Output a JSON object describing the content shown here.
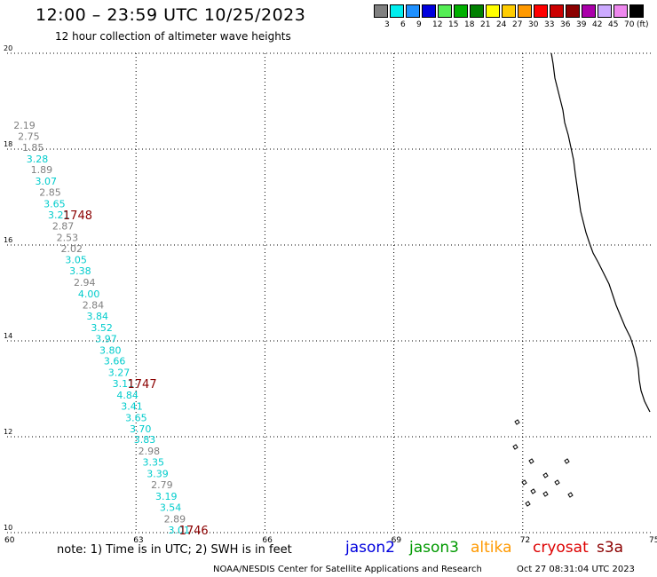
{
  "header": {
    "title": "12:00 – 23:59 UTC 10/25/2023",
    "subtitle": "12 hour collection of altimeter wave heights"
  },
  "colorbar": {
    "swatches": [
      "#808080",
      "#00eeee",
      "#1e90ff",
      "#0000dd",
      "#55ee55",
      "#00b000",
      "#008000",
      "#ffff00",
      "#ffcc00",
      "#ff9900",
      "#ff0000",
      "#cc0000",
      "#8b0000",
      "#aa00aa",
      "#ccaaff",
      "#ee88ee",
      "#000000"
    ],
    "labels": [
      "3",
      "6",
      "9",
      "12",
      "15",
      "18",
      "21",
      "24",
      "27",
      "30",
      "33",
      "36",
      "39",
      "42",
      "45",
      "70"
    ],
    "unit": "(ft)"
  },
  "map": {
    "x_ticks": [
      "60",
      "63",
      "66",
      "69",
      "72",
      "75"
    ],
    "y_ticks": [
      "10",
      "12",
      "14",
      "16",
      "18",
      "20"
    ],
    "x_range": [
      60,
      75
    ],
    "y_range": [
      10,
      20
    ],
    "grid": "dotted"
  },
  "swh_observations": [
    {
      "value": "2.19",
      "color": "#808080",
      "lon": 60.15,
      "lat": 18.5
    },
    {
      "value": "2.75",
      "color": "#808080",
      "lon": 60.25,
      "lat": 18.27
    },
    {
      "value": "1.85",
      "color": "#808080",
      "lon": 60.35,
      "lat": 18.04
    },
    {
      "value": "3.28",
      "color": "#00cccc",
      "lon": 60.45,
      "lat": 17.8
    },
    {
      "value": "1.89",
      "color": "#808080",
      "lon": 60.55,
      "lat": 17.57
    },
    {
      "value": "3.07",
      "color": "#00cccc",
      "lon": 60.65,
      "lat": 17.33
    },
    {
      "value": "2.85",
      "color": "#808080",
      "lon": 60.75,
      "lat": 17.1
    },
    {
      "value": "3.65",
      "color": "#00cccc",
      "lon": 60.85,
      "lat": 16.86
    },
    {
      "value": "3.21",
      "color": "#00cccc",
      "lon": 60.95,
      "lat": 16.63
    },
    {
      "value": "2.87",
      "color": "#808080",
      "lon": 61.05,
      "lat": 16.4
    },
    {
      "value": "2.53",
      "color": "#808080",
      "lon": 61.15,
      "lat": 16.16
    },
    {
      "value": "2.02",
      "color": "#808080",
      "lon": 61.25,
      "lat": 15.93
    },
    {
      "value": "3.05",
      "color": "#00cccc",
      "lon": 61.35,
      "lat": 15.69
    },
    {
      "value": "3.38",
      "color": "#00cccc",
      "lon": 61.45,
      "lat": 15.46
    },
    {
      "value": "2.94",
      "color": "#808080",
      "lon": 61.55,
      "lat": 15.22
    },
    {
      "value": "4.00",
      "color": "#00cccc",
      "lon": 61.65,
      "lat": 14.98
    },
    {
      "value": "2.84",
      "color": "#808080",
      "lon": 61.75,
      "lat": 14.75
    },
    {
      "value": "3.84",
      "color": "#00cccc",
      "lon": 61.85,
      "lat": 14.52
    },
    {
      "value": "3.52",
      "color": "#00cccc",
      "lon": 61.95,
      "lat": 14.28
    },
    {
      "value": "3.97",
      "color": "#00cccc",
      "lon": 62.05,
      "lat": 14.05
    },
    {
      "value": "3.80",
      "color": "#00cccc",
      "lon": 62.15,
      "lat": 13.81
    },
    {
      "value": "3.66",
      "color": "#00cccc",
      "lon": 62.25,
      "lat": 13.58
    },
    {
      "value": "3.27",
      "color": "#00cccc",
      "lon": 62.35,
      "lat": 13.34
    },
    {
      "value": "3.11",
      "color": "#00cccc",
      "lon": 62.45,
      "lat": 13.11
    },
    {
      "value": "4.84",
      "color": "#00cccc",
      "lon": 62.55,
      "lat": 12.87
    },
    {
      "value": "3.41",
      "color": "#00cccc",
      "lon": 62.65,
      "lat": 12.64
    },
    {
      "value": "3.65",
      "color": "#00cccc",
      "lon": 62.75,
      "lat": 12.4
    },
    {
      "value": "3.70",
      "color": "#00cccc",
      "lon": 62.85,
      "lat": 12.17
    },
    {
      "value": "3.83",
      "color": "#00cccc",
      "lon": 62.95,
      "lat": 11.94
    },
    {
      "value": "2.98",
      "color": "#808080",
      "lon": 63.05,
      "lat": 11.7
    },
    {
      "value": "3.35",
      "color": "#00cccc",
      "lon": 63.15,
      "lat": 11.47
    },
    {
      "value": "3.39",
      "color": "#00cccc",
      "lon": 63.25,
      "lat": 11.23
    },
    {
      "value": "2.79",
      "color": "#808080",
      "lon": 63.35,
      "lat": 11.0
    },
    {
      "value": "3.19",
      "color": "#00cccc",
      "lon": 63.45,
      "lat": 10.76
    },
    {
      "value": "3.54",
      "color": "#00cccc",
      "lon": 63.55,
      "lat": 10.53
    },
    {
      "value": "2.89",
      "color": "#808080",
      "lon": 63.65,
      "lat": 10.29
    },
    {
      "value": "3.01",
      "color": "#00cccc",
      "lon": 63.75,
      "lat": 10.06
    }
  ],
  "time_labels": [
    {
      "text": "1748",
      "lon": 61.3,
      "lat": 16.63
    },
    {
      "text": "1747",
      "lon": 62.8,
      "lat": 13.11
    },
    {
      "text": "1746",
      "lon": 64.0,
      "lat": 10.06
    }
  ],
  "footer": {
    "note": "note:  1) Time is in UTC;  2) SWH is in feet",
    "satellites": [
      {
        "name": "jason2",
        "color": "#0000dd"
      },
      {
        "name": "jason3",
        "color": "#009900"
      },
      {
        "name": "altika",
        "color": "#ff9900"
      },
      {
        "name": "cryosat",
        "color": "#dd0000"
      },
      {
        "name": "s3a",
        "color": "#8b0000"
      }
    ],
    "credit": "NOAA/NESDIS Center for Satellite Applications and Research",
    "timestamp": "Oct 27 08:31:04 UTC 2023"
  }
}
